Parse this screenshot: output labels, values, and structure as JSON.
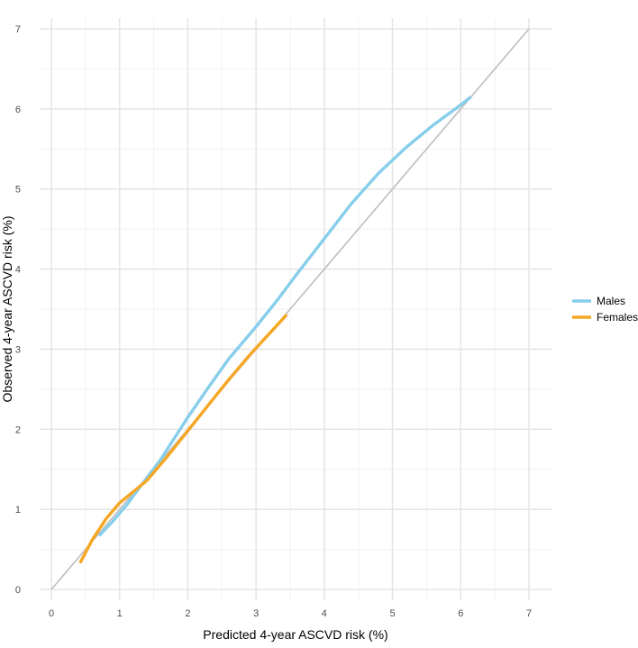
{
  "chart_data": {
    "type": "line",
    "xlabel": "Predicted 4-year ASCVD risk (%)",
    "ylabel": "Observed 4-year ASCVD risk (%)",
    "xlim": [
      0,
      7
    ],
    "ylim": [
      0,
      7
    ],
    "x_ticks": [
      "0",
      "1",
      "2",
      "3",
      "4",
      "5",
      "6",
      "7"
    ],
    "y_ticks": [
      "0",
      "1",
      "2",
      "3",
      "4",
      "5",
      "6",
      "7"
    ],
    "grid": true,
    "legend_position": "right",
    "reference_line": {
      "x": [
        0,
        7
      ],
      "y": [
        0,
        7
      ],
      "color": "#bdbdbd"
    },
    "series": [
      {
        "name": "Males",
        "color": "#87ceeb",
        "x": [
          0.7,
          0.9,
          1.1,
          1.3,
          1.6,
          2.0,
          2.3,
          2.6,
          3.0,
          3.3,
          3.6,
          4.0,
          4.4,
          4.8,
          5.2,
          5.6,
          6.0,
          6.15
        ],
        "y": [
          0.67,
          0.85,
          1.05,
          1.28,
          1.62,
          2.15,
          2.52,
          2.88,
          3.28,
          3.6,
          3.94,
          4.38,
          4.82,
          5.2,
          5.52,
          5.8,
          6.05,
          6.15
        ]
      },
      {
        "name": "Females",
        "color": "#f5a623",
        "x": [
          0.42,
          0.6,
          0.8,
          1.0,
          1.2,
          1.4,
          1.7,
          2.0,
          2.3,
          2.6,
          2.9,
          3.2,
          3.45
        ],
        "y": [
          0.33,
          0.62,
          0.88,
          1.08,
          1.22,
          1.36,
          1.66,
          1.98,
          2.3,
          2.62,
          2.92,
          3.2,
          3.43
        ]
      }
    ]
  }
}
